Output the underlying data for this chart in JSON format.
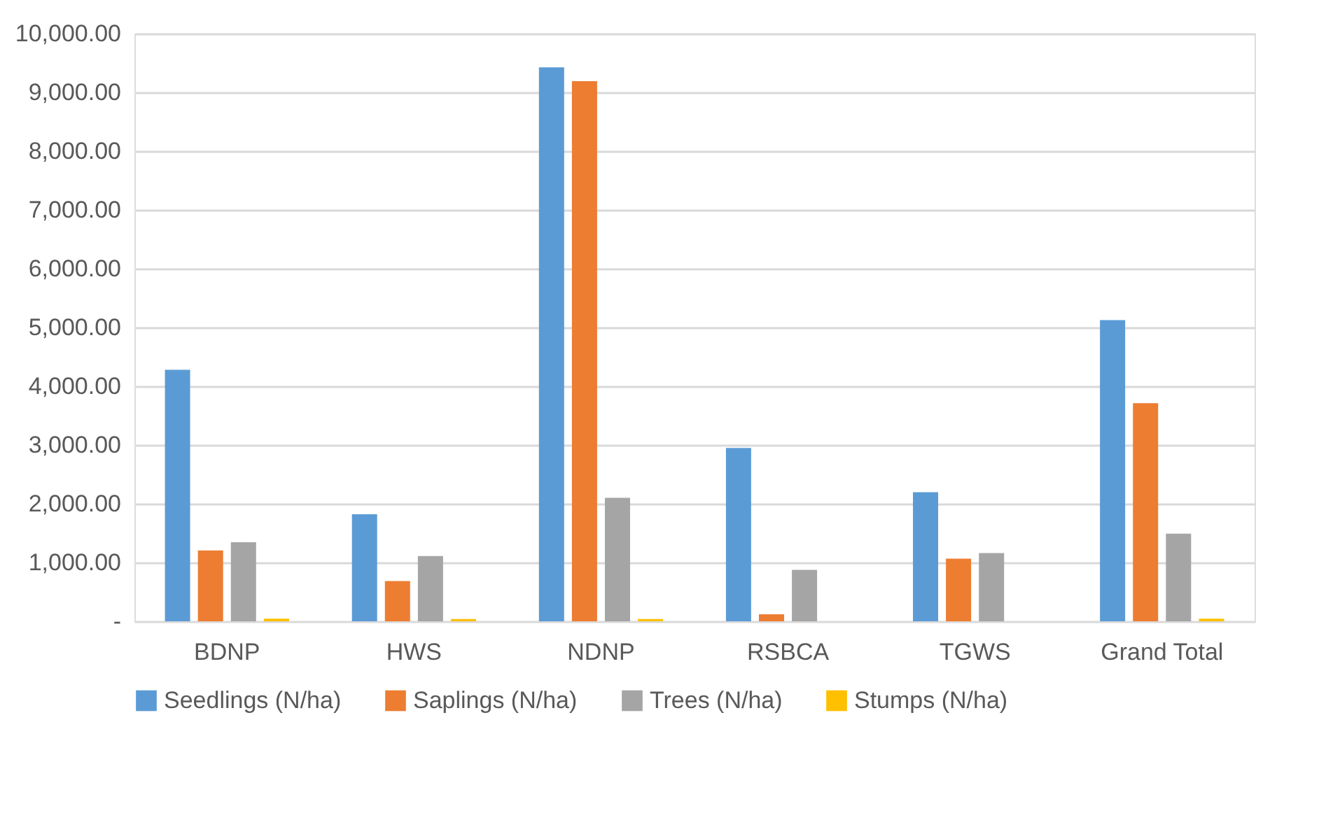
{
  "chart_data": {
    "type": "bar",
    "categories": [
      "BDNP",
      "HWS",
      "NDNP",
      "RSBCA",
      "TGWS",
      "Grand Total"
    ],
    "series": [
      {
        "name": "Seedlings (N/ha)",
        "color": "#5b9bd5",
        "values": [
          4280,
          1820,
          9425,
          2950,
          2195,
          5125
        ]
      },
      {
        "name": "Saplings (N/ha)",
        "color": "#ed7d31",
        "values": [
          1205,
          685,
          9190,
          120,
          1065,
          3710
        ]
      },
      {
        "name": "Trees (N/ha)",
        "color": "#a5a5a5",
        "values": [
          1345,
          1110,
          2100,
          875,
          1160,
          1490
        ]
      },
      {
        "name": "Stumps (N/ha)",
        "color": "#ffc000",
        "values": [
          45,
          40,
          40,
          0,
          0,
          45
        ]
      }
    ],
    "ylim": [
      0,
      10000
    ],
    "yticks": [
      {
        "value": 0,
        "label": "-"
      },
      {
        "value": 1000,
        "label": "1,000.00"
      },
      {
        "value": 2000,
        "label": "2,000.00"
      },
      {
        "value": 3000,
        "label": "3,000.00"
      },
      {
        "value": 4000,
        "label": "4,000.00"
      },
      {
        "value": 5000,
        "label": "5,000.00"
      },
      {
        "value": 6000,
        "label": "6,000.00"
      },
      {
        "value": 7000,
        "label": "7,000.00"
      },
      {
        "value": 8000,
        "label": "8,000.00"
      },
      {
        "value": 9000,
        "label": "9,000.00"
      },
      {
        "value": 10000,
        "label": "10,000.00"
      }
    ],
    "grid": "y",
    "legend": "bottom"
  }
}
